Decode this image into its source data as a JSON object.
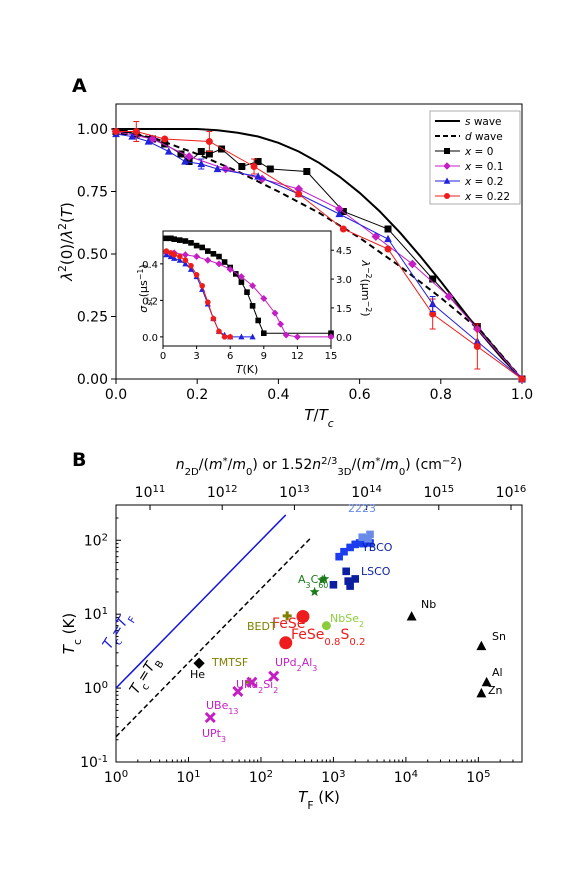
{
  "chart_data": [
    {
      "panel": "A",
      "type": "line",
      "xlabel": "T/T_c",
      "ylabel": "λ²(0)/λ²(T)",
      "xlim": [
        0,
        1
      ],
      "ylim": [
        0,
        1.1
      ],
      "xticks": [
        "0.0",
        "0.2",
        "0.4",
        "0.6",
        "0.8",
        "1.0"
      ],
      "yticks": [
        "0.00",
        "0.25",
        "0.50",
        "0.75",
        "1.00"
      ],
      "legend": {
        "placement": "top-right",
        "entries": [
          "s wave",
          "d wave",
          "x = 0",
          "x = 0.1",
          "x = 0.2",
          "x = 0.22"
        ]
      },
      "series": [
        {
          "name": "s wave",
          "color": "#000000",
          "style": "solid",
          "x": [
            0,
            0.1,
            0.2,
            0.25,
            0.3,
            0.35,
            0.4,
            0.45,
            0.5,
            0.55,
            0.6,
            0.65,
            0.7,
            0.75,
            0.8,
            0.85,
            0.9,
            0.95,
            1.0
          ],
          "y": [
            1.0,
            1.0,
            1.0,
            0.995,
            0.985,
            0.97,
            0.945,
            0.91,
            0.865,
            0.81,
            0.745,
            0.67,
            0.585,
            0.49,
            0.39,
            0.285,
            0.18,
            0.085,
            0.0
          ]
        },
        {
          "name": "d wave",
          "color": "#000000",
          "style": "dashed",
          "x": [
            0,
            0.1,
            0.2,
            0.3,
            0.4,
            0.5,
            0.6,
            0.7,
            0.8,
            0.9,
            1.0
          ],
          "y": [
            1.0,
            0.96,
            0.9,
            0.83,
            0.75,
            0.665,
            0.565,
            0.45,
            0.325,
            0.19,
            0.0
          ]
        },
        {
          "name": "x = 0",
          "color": "#000000",
          "marker": "square",
          "x": [
            0.0,
            0.02,
            0.05,
            0.09,
            0.12,
            0.16,
            0.18,
            0.21,
            0.23,
            0.26,
            0.31,
            0.35,
            0.38,
            0.47,
            0.56,
            0.67,
            0.78,
            0.89,
            1.0
          ],
          "y": [
            0.99,
            0.99,
            0.98,
            0.96,
            0.94,
            0.9,
            0.87,
            0.91,
            0.9,
            0.92,
            0.85,
            0.87,
            0.84,
            0.83,
            0.67,
            0.6,
            0.4,
            0.21,
            0.0
          ]
        },
        {
          "name": "x = 0.1",
          "color": "#c41fc4",
          "marker": "diamond",
          "x": [
            0.0,
            0.09,
            0.18,
            0.27,
            0.36,
            0.45,
            0.55,
            0.64,
            0.73,
            0.82,
            0.89,
            1.0
          ],
          "y": [
            0.99,
            0.96,
            0.89,
            0.84,
            0.8,
            0.76,
            0.68,
            0.57,
            0.46,
            0.33,
            0.2,
            0.0
          ]
        },
        {
          "name": "x = 0.2",
          "color": "#2222dd",
          "marker": "triangle",
          "x": [
            0.0,
            0.04,
            0.08,
            0.13,
            0.17,
            0.21,
            0.25,
            0.35,
            0.45,
            0.55,
            0.67,
            0.78,
            0.89,
            1.0
          ],
          "y": [
            0.98,
            0.97,
            0.95,
            0.91,
            0.87,
            0.86,
            0.84,
            0.81,
            0.74,
            0.66,
            0.56,
            0.3,
            0.15,
            0.0
          ]
        },
        {
          "name": "x = 0.22",
          "color": "#ee1c1c",
          "marker": "circle",
          "x": [
            0.0,
            0.05,
            0.12,
            0.23,
            0.34,
            0.45,
            0.56,
            0.67,
            0.78,
            0.89,
            1.0
          ],
          "y": [
            0.99,
            0.99,
            0.96,
            0.95,
            0.85,
            0.74,
            0.6,
            0.52,
            0.26,
            0.13,
            0.0
          ]
        }
      ]
    },
    {
      "panel": "A-inset",
      "type": "line",
      "xlabel": "T(K)",
      "ylabel_left": "σsc(μs⁻¹)",
      "ylabel_right": "λ⁻²(μm⁻²)",
      "xlim": [
        0,
        15
      ],
      "ylim_left": [
        -0.05,
        0.58
      ],
      "ylim_right": [
        -0.48,
        5.5
      ],
      "xticks": [
        "0",
        "3",
        "6",
        "9",
        "12",
        "15"
      ],
      "yticks_left": [
        "0.0",
        "0.2",
        "0.4"
      ],
      "yticks_right": [
        "0.0",
        "1.5",
        "3.0",
        "4.5"
      ],
      "series": [
        {
          "name": "x = 0",
          "color": "#000000",
          "marker": "square",
          "x": [
            0.3,
            0.7,
            1.0,
            1.5,
            2.0,
            2.5,
            3.0,
            3.5,
            4.0,
            4.5,
            5.0,
            5.5,
            6.0,
            6.5,
            7.0,
            7.5,
            8.0,
            8.5,
            9.0,
            15.0
          ],
          "y": [
            0.54,
            0.54,
            0.535,
            0.53,
            0.525,
            0.515,
            0.5,
            0.49,
            0.47,
            0.455,
            0.44,
            0.41,
            0.38,
            0.345,
            0.3,
            0.245,
            0.17,
            0.09,
            0.02,
            0.02
          ]
        },
        {
          "name": "x = 0.1",
          "color": "#c41fc4",
          "marker": "diamond",
          "x": [
            0.3,
            1.0,
            2.0,
            3.0,
            4.0,
            5.0,
            6.0,
            7.0,
            8.0,
            9.0,
            10.0,
            10.5,
            11.0,
            12.0,
            15.0
          ],
          "y": [
            0.46,
            0.46,
            0.45,
            0.44,
            0.42,
            0.4,
            0.37,
            0.33,
            0.28,
            0.21,
            0.13,
            0.07,
            0.01,
            0.0,
            0.0
          ]
        },
        {
          "name": "x = 0.2",
          "color": "#2222dd",
          "marker": "triangle",
          "x": [
            0.3,
            0.7,
            1.0,
            1.5,
            2.0,
            2.5,
            3.0,
            3.5,
            4.0,
            4.5,
            5.0,
            5.5,
            6.0,
            7.0,
            8.0
          ],
          "y": [
            0.45,
            0.44,
            0.43,
            0.42,
            0.4,
            0.37,
            0.33,
            0.26,
            0.18,
            0.1,
            0.03,
            0.01,
            0.0,
            0.0,
            0.0
          ]
        },
        {
          "name": "x = 0.22",
          "color": "#ee1c1c",
          "marker": "circle",
          "x": [
            0.3,
            0.7,
            1.0,
            1.5,
            2.0,
            2.5,
            3.0,
            3.5,
            4.0,
            4.5,
            5.0,
            5.5,
            6.0
          ],
          "y": [
            0.47,
            0.46,
            0.45,
            0.44,
            0.42,
            0.39,
            0.34,
            0.28,
            0.19,
            0.1,
            0.03,
            0.0,
            0.0
          ]
        }
      ]
    },
    {
      "panel": "B",
      "type": "scatter",
      "xscale": "log",
      "yscale": "log",
      "xlabel": "T_F (K)",
      "ylabel": "T_c (K)",
      "top_axis_label": "n2D/(m*/m0) or 1.52n3D^(2/3)/(m*/m0) (cm⁻²)",
      "xlim": [
        1,
        400000
      ],
      "ylim": [
        0.1,
        300
      ],
      "xticks": [
        "10⁰",
        "10¹",
        "10²",
        "10³",
        "10⁴",
        "10⁵"
      ],
      "yticks": [
        "10⁻¹",
        "10⁰",
        "10¹",
        "10²"
      ],
      "top_ticks": [
        "10¹¹",
        "10¹²",
        "10¹³",
        "10¹⁴",
        "10¹⁵",
        "10¹⁶"
      ],
      "reference_lines": [
        {
          "label": "Tc=TF",
          "color": "#1515dd",
          "style": "solid",
          "x": [
            1,
            220
          ],
          "y": [
            1,
            220
          ]
        },
        {
          "label": "Tc=TB",
          "color": "#000000",
          "style": "dashed",
          "x": [
            1,
            480
          ],
          "y": [
            0.22,
            106
          ]
        }
      ],
      "points": [
        {
          "label": "FeSe",
          "color": "#ee1c1c",
          "marker": "circle",
          "x": 380,
          "y": 9.3
        },
        {
          "label": "FeSe0.8S0.2",
          "color": "#ee1c1c",
          "marker": "circle",
          "x": 220,
          "y": 4.1
        },
        {
          "label": "NbSe2",
          "color": "#8ccc3c",
          "marker": "circle",
          "x": 800,
          "y": 7.0
        },
        {
          "label": "BEDT",
          "color": "#808000",
          "marker": "plus",
          "x": 230,
          "y": 9.5
        },
        {
          "label": "TMTSF",
          "color": "#808000",
          "marker": "plus",
          "x": 70,
          "y": 1.2
        },
        {
          "label": "He",
          "color": "#000000",
          "marker": "diamond",
          "x": 14,
          "y": 2.17
        },
        {
          "label": "Nb",
          "color": "#000000",
          "marker": "triangle",
          "x": 12000,
          "y": 9.3
        },
        {
          "label": "Sn",
          "color": "#000000",
          "marker": "triangle",
          "x": 110000,
          "y": 3.7
        },
        {
          "label": "Al",
          "color": "#000000",
          "marker": "triangle",
          "x": 130000,
          "y": 1.2
        },
        {
          "label": "Zn",
          "color": "#000000",
          "marker": "triangle",
          "x": 110000,
          "y": 0.85
        },
        {
          "label": "UPd2Al3",
          "color": "#c41fc4",
          "marker": "x",
          "x": 150,
          "y": 1.45
        },
        {
          "label": "URu2Si2",
          "color": "#c41fc4",
          "marker": "x",
          "x": 75,
          "y": 1.2
        },
        {
          "label": "UBe13",
          "color": "#c41fc4",
          "marker": "x",
          "x": 48,
          "y": 0.9
        },
        {
          "label": "UPt3",
          "color": "#c41fc4",
          "marker": "x",
          "x": 20,
          "y": 0.4
        }
      ],
      "groups": [
        {
          "label": "A3C60",
          "color": "#1a7a1a",
          "marker": "star",
          "x": [
            550,
            700,
            750
          ],
          "y": [
            20,
            29,
            30
          ]
        },
        {
          "label": "LSCO",
          "color": "#0b1ea0",
          "marker": "square",
          "x": [
            1000,
            1500,
            1600,
            1700,
            2000
          ],
          "y": [
            25,
            38,
            28,
            24,
            30
          ]
        },
        {
          "label": "YBCO",
          "color": "#1c3cf0",
          "marker": "square",
          "x": [
            1200,
            1400,
            1700,
            2000,
            2300,
            2600,
            2900,
            3200
          ],
          "y": [
            60,
            70,
            80,
            88,
            92,
            90,
            93,
            92
          ]
        },
        {
          "label": "2223",
          "color": "#6a8ce8",
          "marker": "square",
          "x": [
            2500,
            3000,
            3200
          ],
          "y": [
            110,
            105,
            120
          ]
        }
      ],
      "labels": {
        "tcf": "Tc=TF",
        "tcb": "Tc=TB",
        "fese": "FeSe",
        "fese_s": "FeSe0.8S0.2",
        "nbse2": "NbSe2",
        "bedt": "BEDT",
        "tmtsf": "TMTSF",
        "he": "He",
        "nb": "Nb",
        "sn": "Sn",
        "al": "Al",
        "zn": "Zn",
        "upd2al3": "UPd2Al3",
        "uru2si2": "URu2Si2",
        "ube13": "UBe13",
        "upt3": "UPt3",
        "a3c60": "A3C60",
        "lsco": "LSCO",
        "ybco": "YBCO",
        "p2223": "2223"
      }
    }
  ],
  "panel_labels": {
    "a": "A",
    "b": "B"
  }
}
